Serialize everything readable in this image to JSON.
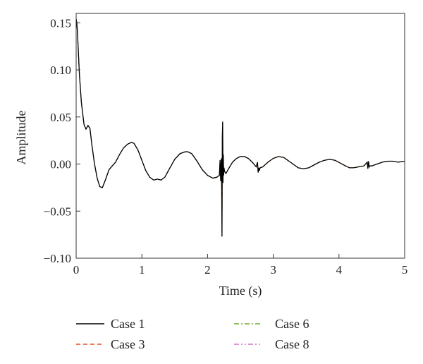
{
  "chart_data": {
    "type": "line",
    "title": "",
    "xlabel": "Time (s)",
    "ylabel": "Amplitude",
    "xlim": [
      0,
      5
    ],
    "ylim": [
      -0.1,
      0.16
    ],
    "xticks": [
      0,
      1,
      2,
      3,
      4,
      5
    ],
    "yticks": [
      -0.1,
      -0.05,
      0.0,
      0.05,
      0.1,
      0.15
    ],
    "xtick_labels": [
      "0",
      "1",
      "2",
      "3",
      "4",
      "5"
    ],
    "ytick_labels": [
      "−0.10",
      "−0.05",
      "0.00",
      "0.05",
      "0.10",
      "0.15"
    ],
    "grid": false,
    "legend_position": "bottom",
    "series": [
      {
        "name": "Case 1",
        "color": "#000000",
        "dash": "solid"
      },
      {
        "name": "Case 3",
        "color": "#e0501a",
        "dash": "dashed"
      },
      {
        "name": "Case 6",
        "color": "#6aaa2a",
        "dash": "dashdot"
      },
      {
        "name": "Case 8",
        "color": "#d070c8",
        "dash": "dashdotdot"
      }
    ],
    "x": [
      0.0,
      0.01,
      0.02,
      0.03,
      0.05,
      0.08,
      0.12,
      0.15,
      0.18,
      0.21,
      0.24,
      0.28,
      0.32,
      0.36,
      0.4,
      0.45,
      0.5,
      0.55,
      0.6,
      0.66,
      0.72,
      0.78,
      0.84,
      0.88,
      0.94,
      1.0,
      1.06,
      1.12,
      1.18,
      1.24,
      1.29,
      1.35,
      1.42,
      1.5,
      1.58,
      1.66,
      1.7,
      1.76,
      1.84,
      1.92,
      2.0,
      2.08,
      2.14,
      2.18,
      2.19,
      2.2,
      2.21,
      2.215,
      2.22,
      2.225,
      2.23,
      2.235,
      2.24,
      2.245,
      2.25,
      2.26,
      2.28,
      2.32,
      2.38,
      2.44,
      2.5,
      2.56,
      2.62,
      2.68,
      2.74,
      2.76,
      2.77,
      2.78,
      2.79,
      2.8,
      2.84,
      2.92,
      3.0,
      3.08,
      3.16,
      3.24,
      3.32,
      3.38,
      3.46,
      3.54,
      3.62,
      3.7,
      3.78,
      3.86,
      3.94,
      4.02,
      4.1,
      4.16,
      4.22,
      4.3,
      4.38,
      4.43,
      4.44,
      4.45,
      4.46,
      4.47,
      4.5,
      4.58,
      4.66,
      4.74,
      4.82,
      4.9,
      5.0
    ],
    "y": [
      0.154,
      0.15,
      0.14,
      0.125,
      0.095,
      0.065,
      0.042,
      0.037,
      0.041,
      0.038,
      0.02,
      0.0,
      -0.015,
      -0.024,
      -0.025,
      -0.016,
      -0.006,
      -0.002,
      0.002,
      0.01,
      0.017,
      0.021,
      0.023,
      0.022,
      0.015,
      0.004,
      -0.007,
      -0.014,
      -0.017,
      -0.016,
      -0.017,
      -0.014,
      -0.005,
      0.005,
      0.011,
      0.013,
      0.013,
      0.011,
      0.003,
      -0.006,
      -0.012,
      -0.015,
      -0.014,
      -0.012,
      0.004,
      -0.018,
      0.006,
      -0.022,
      -0.077,
      0.03,
      0.045,
      -0.02,
      0.01,
      -0.012,
      -0.004,
      -0.008,
      -0.01,
      -0.005,
      0.002,
      0.006,
      0.008,
      0.008,
      0.006,
      0.002,
      -0.003,
      0.002,
      -0.009,
      -0.004,
      -0.007,
      -0.004,
      -0.003,
      0.002,
      0.006,
      0.008,
      0.007,
      0.003,
      -0.001,
      -0.004,
      -0.005,
      -0.004,
      -0.001,
      0.002,
      0.004,
      0.005,
      0.004,
      0.001,
      -0.002,
      -0.004,
      -0.004,
      -0.003,
      -0.002,
      0.002,
      -0.005,
      0.003,
      -0.003,
      -0.002,
      -0.002,
      0.0,
      0.002,
      0.003,
      0.003,
      0.002,
      0.003
    ]
  }
}
